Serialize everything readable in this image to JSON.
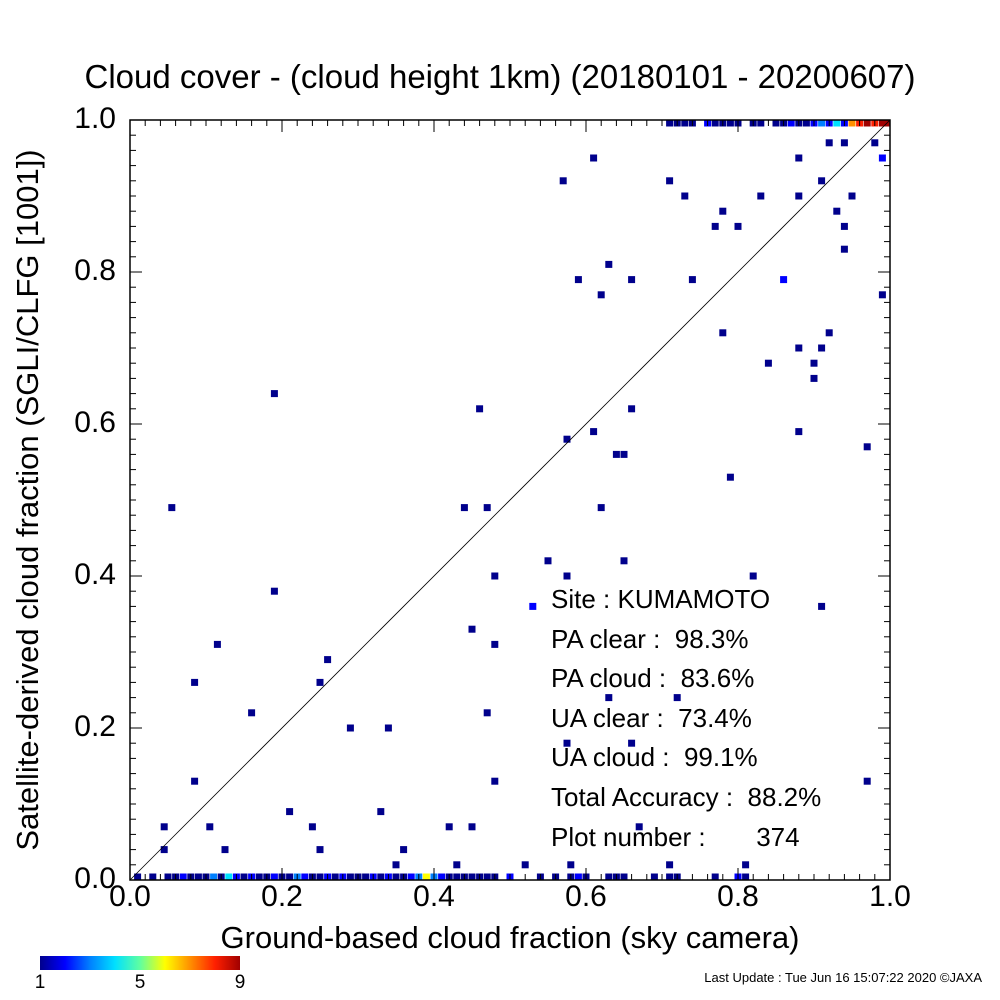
{
  "title": "Cloud cover - (cloud height 1km)  (20180101 - 20200607)",
  "xlabel": "Ground-based cloud fraction (sky camera)",
  "ylabel": "Satellite-derived cloud fraction (SGLI/CLFG [1001])",
  "xticks": [
    "0.0",
    "0.2",
    "0.4",
    "0.6",
    "0.8",
    "1.0"
  ],
  "yticks": [
    "0.0",
    "0.2",
    "0.4",
    "0.6",
    "0.8",
    "1.0"
  ],
  "stats": {
    "site": "Site : KUMAMOTO",
    "pa_clear": "PA clear :  98.3%",
    "pa_cloud": "PA cloud :  83.6%",
    "ua_clear": "UA clear :  73.4%",
    "ua_cloud": "UA cloud :  99.1%",
    "total": "Total Accuracy :  88.2%",
    "plot_number": "Plot number :       374"
  },
  "colorbar": {
    "ticks": [
      "1",
      "5",
      "9"
    ],
    "colors": [
      "#00008c",
      "#0000ff",
      "#0080ff",
      "#00e0ff",
      "#60ffa0",
      "#ffff00",
      "#ff9000",
      "#ff2000",
      "#a00000"
    ]
  },
  "footer": "Last Update : Tue Jun 16 15:07:22 2020  ©JAXA",
  "chart_data": {
    "type": "scatter",
    "title": "Cloud cover - (cloud height 1km)  (20180101 - 20200607)",
    "xlabel": "Ground-based cloud fraction (sky camera)",
    "ylabel": "Satellite-derived cloud fraction (SGLI/CLFG [1001])",
    "xlim": [
      0,
      1
    ],
    "ylim": [
      0,
      1
    ],
    "reference_line": "y = x",
    "color_scale": "count of observations per bin (1 to 9)",
    "points": [
      [
        0.055,
        0.49,
        1
      ],
      [
        0.19,
        0.64,
        1
      ],
      [
        0.19,
        0.38,
        1
      ],
      [
        0.115,
        0.31,
        1
      ],
      [
        0.085,
        0.26,
        1
      ],
      [
        0.16,
        0.22,
        1
      ],
      [
        0.085,
        0.13,
        1
      ],
      [
        0.045,
        0.07,
        1
      ],
      [
        0.045,
        0.04,
        1
      ],
      [
        0.105,
        0.07,
        1
      ],
      [
        0.125,
        0.04,
        1
      ],
      [
        0.21,
        0.09,
        1
      ],
      [
        0.24,
        0.07,
        1
      ],
      [
        0.25,
        0.04,
        1
      ],
      [
        0.26,
        0.29,
        1
      ],
      [
        0.25,
        0.26,
        1
      ],
      [
        0.29,
        0.2,
        1
      ],
      [
        0.34,
        0.2,
        1
      ],
      [
        0.33,
        0.09,
        1
      ],
      [
        0.36,
        0.04,
        1
      ],
      [
        0.35,
        0.02,
        1
      ],
      [
        0.42,
        0.07,
        1
      ],
      [
        0.43,
        0.02,
        1
      ],
      [
        0.45,
        0.07,
        1
      ],
      [
        0.44,
        0.49,
        1
      ],
      [
        0.47,
        0.49,
        1
      ],
      [
        0.46,
        0.62,
        1
      ],
      [
        0.48,
        0.4,
        1
      ],
      [
        0.45,
        0.33,
        1
      ],
      [
        0.48,
        0.31,
        1
      ],
      [
        0.47,
        0.22,
        1
      ],
      [
        0.48,
        0.13,
        1
      ],
      [
        0.52,
        0.02,
        1
      ],
      [
        0.53,
        0.36,
        2
      ],
      [
        0.55,
        0.42,
        1
      ],
      [
        0.575,
        0.4,
        1
      ],
      [
        0.575,
        0.58,
        1
      ],
      [
        0.575,
        0.18,
        1
      ],
      [
        0.57,
        0.92,
        1
      ],
      [
        0.58,
        0.02,
        1
      ],
      [
        0.59,
        0.79,
        1
      ],
      [
        0.61,
        0.95,
        1
      ],
      [
        0.61,
        0.59,
        1
      ],
      [
        0.62,
        0.77,
        1
      ],
      [
        0.62,
        0.49,
        1
      ],
      [
        0.63,
        0.81,
        1
      ],
      [
        0.63,
        0.24,
        1
      ],
      [
        0.64,
        0.56,
        1
      ],
      [
        0.65,
        0.56,
        1
      ],
      [
        0.65,
        0.42,
        1
      ],
      [
        0.66,
        0.79,
        1
      ],
      [
        0.66,
        0.62,
        1
      ],
      [
        0.66,
        0.18,
        1
      ],
      [
        0.67,
        0.07,
        1
      ],
      [
        0.71,
        0.92,
        1
      ],
      [
        0.71,
        0.02,
        1
      ],
      [
        0.72,
        0.24,
        1
      ],
      [
        0.73,
        0.9,
        1
      ],
      [
        0.74,
        0.79,
        1
      ],
      [
        0.77,
        0.86,
        1
      ],
      [
        0.78,
        0.88,
        1
      ],
      [
        0.78,
        0.72,
        1
      ],
      [
        0.79,
        0.53,
        1
      ],
      [
        0.8,
        0.86,
        1
      ],
      [
        0.81,
        0.02,
        1
      ],
      [
        0.82,
        0.4,
        1
      ],
      [
        0.83,
        0.9,
        1
      ],
      [
        0.84,
        0.68,
        1
      ],
      [
        0.86,
        0.79,
        2
      ],
      [
        0.88,
        0.95,
        1
      ],
      [
        0.88,
        0.9,
        1
      ],
      [
        0.88,
        0.7,
        1
      ],
      [
        0.88,
        0.59,
        1
      ],
      [
        0.9,
        0.68,
        1
      ],
      [
        0.9,
        0.66,
        1
      ],
      [
        0.91,
        0.7,
        1
      ],
      [
        0.91,
        0.92,
        1
      ],
      [
        0.91,
        0.36,
        1
      ],
      [
        0.92,
        0.72,
        1
      ],
      [
        0.92,
        0.97,
        1
      ],
      [
        0.93,
        0.88,
        1
      ],
      [
        0.94,
        0.97,
        1
      ],
      [
        0.94,
        0.86,
        1
      ],
      [
        0.94,
        0.83,
        1
      ],
      [
        0.95,
        0.9,
        1
      ],
      [
        0.97,
        0.57,
        1
      ],
      [
        0.97,
        0.13,
        1
      ],
      [
        0.98,
        0.97,
        1
      ],
      [
        0.99,
        0.95,
        2
      ],
      [
        0.99,
        0.77,
        1
      ]
    ],
    "bottom_edge_y0": [
      [
        0.01,
        1
      ],
      [
        0.03,
        1
      ],
      [
        0.05,
        1
      ],
      [
        0.06,
        1
      ],
      [
        0.07,
        2
      ],
      [
        0.08,
        1
      ],
      [
        0.09,
        1
      ],
      [
        0.1,
        1
      ],
      [
        0.11,
        3
      ],
      [
        0.12,
        1
      ],
      [
        0.13,
        4
      ],
      [
        0.14,
        2
      ],
      [
        0.15,
        1
      ],
      [
        0.16,
        2
      ],
      [
        0.17,
        1
      ],
      [
        0.18,
        1
      ],
      [
        0.19,
        2
      ],
      [
        0.2,
        1
      ],
      [
        0.21,
        1
      ],
      [
        0.22,
        3
      ],
      [
        0.23,
        2
      ],
      [
        0.24,
        1
      ],
      [
        0.25,
        1
      ],
      [
        0.26,
        2
      ],
      [
        0.27,
        1
      ],
      [
        0.28,
        2
      ],
      [
        0.29,
        1
      ],
      [
        0.3,
        1
      ],
      [
        0.31,
        1
      ],
      [
        0.32,
        2
      ],
      [
        0.33,
        1
      ],
      [
        0.34,
        2
      ],
      [
        0.35,
        1
      ],
      [
        0.36,
        1
      ],
      [
        0.37,
        2
      ],
      [
        0.38,
        3
      ],
      [
        0.39,
        6
      ],
      [
        0.4,
        3
      ],
      [
        0.41,
        2
      ],
      [
        0.42,
        1
      ],
      [
        0.43,
        1
      ],
      [
        0.44,
        1
      ],
      [
        0.45,
        1
      ],
      [
        0.46,
        1
      ],
      [
        0.47,
        1
      ],
      [
        0.48,
        1
      ],
      [
        0.5,
        2
      ],
      [
        0.54,
        1
      ],
      [
        0.56,
        1
      ],
      [
        0.58,
        1
      ],
      [
        0.59,
        2
      ],
      [
        0.6,
        1
      ],
      [
        0.63,
        1
      ],
      [
        0.64,
        1
      ],
      [
        0.65,
        1
      ],
      [
        0.69,
        1
      ],
      [
        0.71,
        1
      ],
      [
        0.72,
        1
      ],
      [
        0.77,
        1
      ],
      [
        0.8,
        2
      ],
      [
        0.81,
        1
      ]
    ],
    "top_edge_y1": [
      [
        0.71,
        1
      ],
      [
        0.72,
        1
      ],
      [
        0.73,
        1
      ],
      [
        0.74,
        1
      ],
      [
        0.76,
        2
      ],
      [
        0.77,
        1
      ],
      [
        0.78,
        1
      ],
      [
        0.79,
        1
      ],
      [
        0.8,
        1
      ],
      [
        0.82,
        1
      ],
      [
        0.83,
        1
      ],
      [
        0.85,
        1
      ],
      [
        0.86,
        1
      ],
      [
        0.87,
        2
      ],
      [
        0.88,
        1
      ],
      [
        0.89,
        1
      ],
      [
        0.9,
        2
      ],
      [
        0.91,
        3
      ],
      [
        0.92,
        2
      ],
      [
        0.93,
        4
      ],
      [
        0.94,
        2
      ],
      [
        0.95,
        7
      ],
      [
        0.96,
        8
      ],
      [
        0.97,
        9
      ],
      [
        0.98,
        8
      ],
      [
        0.99,
        9
      ],
      [
        1.0,
        9
      ]
    ]
  }
}
